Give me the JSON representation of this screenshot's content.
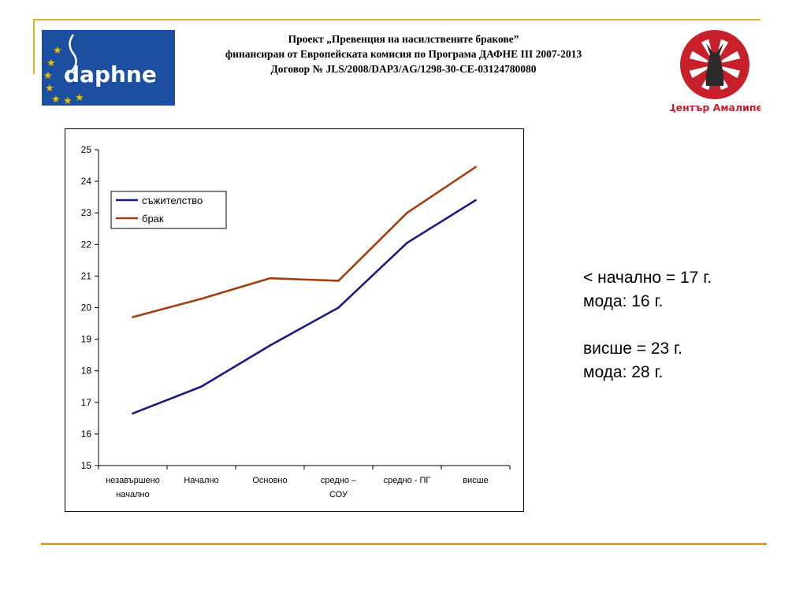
{
  "header": {
    "line1": "Проект „Превенция на насилствените бракове”",
    "line2": "финансиран от Европейската комисия по Програма ДАФНЕ III 2007-2013",
    "line3": "Договор № JLS/2008/DAP3/AG/1298-30-CE-03124780080"
  },
  "logos": {
    "daphne_text": "daphne",
    "amalipe_text": "Център Амалипе",
    "daphne_bg": "#1d4fa0",
    "amalipe_red": "#c8202a"
  },
  "chart_data": {
    "type": "line",
    "categories": [
      [
        "незавършено",
        "начално"
      ],
      [
        "Начално"
      ],
      [
        "Основно"
      ],
      [
        "средно –",
        "СОУ"
      ],
      [
        "средно - ПГ"
      ],
      [
        "висше"
      ]
    ],
    "yticks": [
      "15",
      "16",
      "17",
      "18",
      "19",
      "20",
      "21",
      "22",
      "23",
      "24",
      "25"
    ],
    "ylim": [
      15,
      25
    ],
    "series": [
      {
        "name": "съжителство",
        "color": "#1a1a80",
        "values": [
          16.65,
          17.5,
          18.8,
          20.0,
          22.05,
          23.4
        ]
      },
      {
        "name": "брак",
        "color": "#a0400f",
        "values": [
          19.7,
          20.28,
          20.93,
          20.85,
          23.0,
          24.45
        ]
      }
    ],
    "legend": "top-left",
    "grid": false
  },
  "notes": {
    "line1": "< начално = 17 г.",
    "line2": "мода: 16 г.",
    "line3": "висше = 23 г.",
    "line4": "мода: 28 г."
  }
}
